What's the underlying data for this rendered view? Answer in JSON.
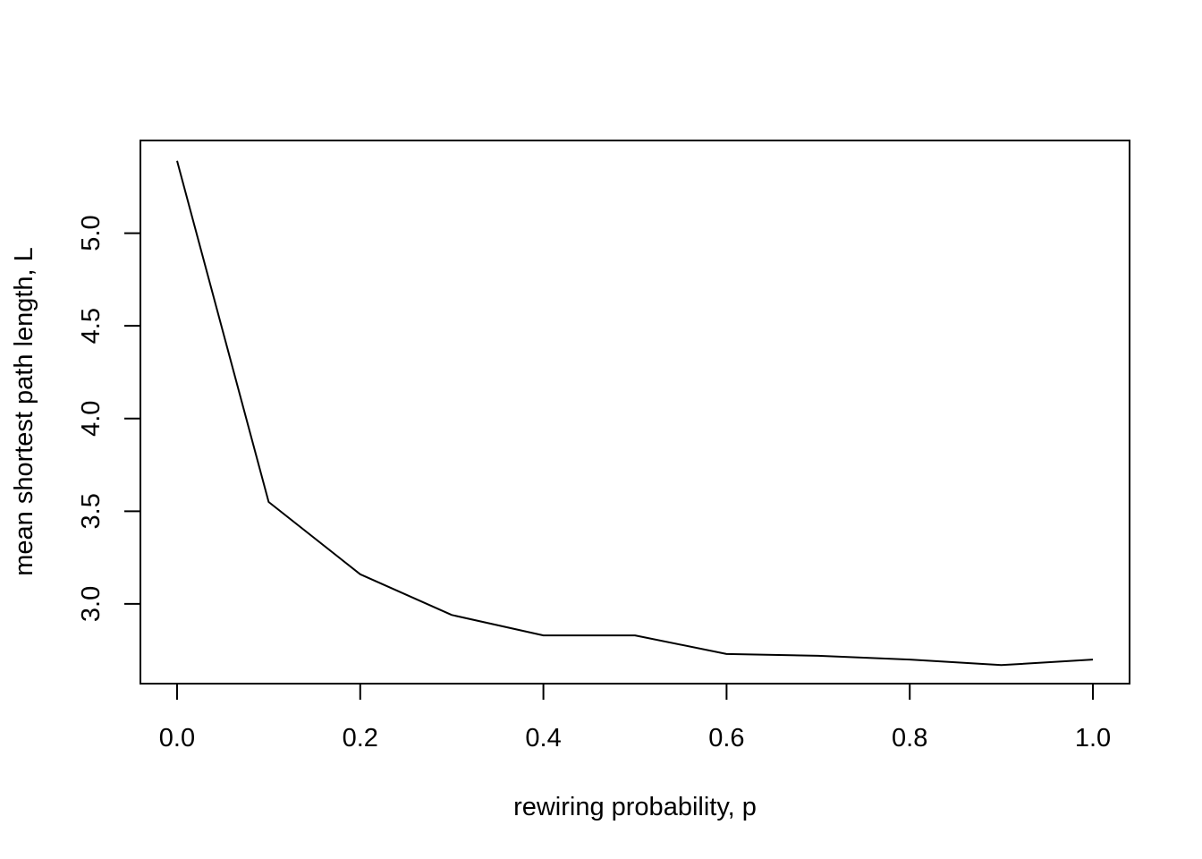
{
  "chart_data": {
    "type": "line",
    "title": "",
    "xlabel": "rewiring probability, p",
    "ylabel": "mean shortest path length, L",
    "x": [
      0.0,
      0.1,
      0.2,
      0.3,
      0.4,
      0.5,
      0.6,
      0.7,
      0.8,
      0.9,
      1.0
    ],
    "series": [
      {
        "values": [
          5.39,
          3.55,
          3.16,
          2.94,
          2.83,
          2.83,
          2.73,
          2.72,
          2.7,
          2.67,
          2.7
        ]
      }
    ],
    "xlim": [
      -0.04,
      1.04
    ],
    "ylim": [
      2.57,
      5.5
    ],
    "xticks": [
      0.0,
      0.2,
      0.4,
      0.6,
      0.8,
      1.0
    ],
    "xtick_labels": [
      "0.0",
      "0.2",
      "0.4",
      "0.6",
      "0.8",
      "1.0"
    ],
    "yticks": [
      3.0,
      3.5,
      4.0,
      4.5,
      5.0
    ],
    "ytick_labels": [
      "3.0",
      "3.5",
      "4.0",
      "4.5",
      "5.0"
    ],
    "grid": false,
    "legend": "none",
    "line_color": "#000000"
  }
}
